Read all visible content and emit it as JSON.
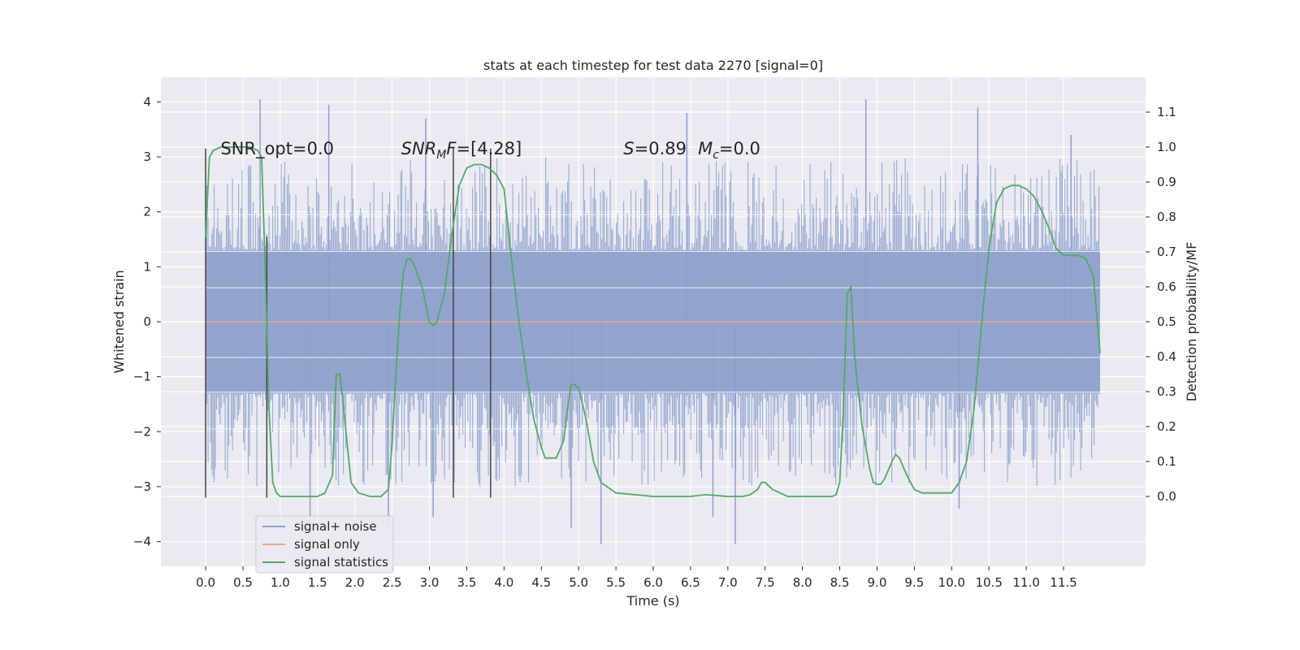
{
  "chart_data": {
    "type": "line",
    "title": "stats at each timestep for test data 2270 [signal=0]",
    "xlabel": "Time (s)",
    "ylabel": "Whitened strain",
    "ylabel_right": "Detection probability/MF",
    "xlim": [
      -0.6,
      12.6
    ],
    "ylim": [
      -4.45,
      4.45
    ],
    "ylim_right": [
      -0.2,
      1.2
    ],
    "x_ticks": [
      0.0,
      0.5,
      1.0,
      1.5,
      2.0,
      2.5,
      3.0,
      3.5,
      4.0,
      4.5,
      5.0,
      5.5,
      6.0,
      6.5,
      7.0,
      7.5,
      8.0,
      8.5,
      9.0,
      9.5,
      10.0,
      10.5,
      11.0,
      11.5
    ],
    "x_tick_labels": [
      "0.0",
      "0.5",
      "1.0",
      "1.5",
      "2.0",
      "2.5",
      "3.0",
      "3.5",
      "4.0",
      "4.5",
      "5.0",
      "5.5",
      "6.0",
      "6.5",
      "7.0",
      "7.5",
      "8.0",
      "8.5",
      "9.0",
      "9.5",
      "10.0",
      "10.5",
      "11.0",
      "11.5"
    ],
    "y_ticks": [
      -4,
      -3,
      -2,
      -1,
      0,
      1,
      2,
      3,
      4
    ],
    "y_tick_labels": [
      "−4",
      "−3",
      "−2",
      "−1",
      "0",
      "1",
      "2",
      "3",
      "4"
    ],
    "y_ticks_right": [
      0.0,
      0.1,
      0.2,
      0.3,
      0.4,
      0.5,
      0.6,
      0.7,
      0.8,
      0.9,
      1.0,
      1.1
    ],
    "y_tick_labels_right": [
      "0.0",
      "0.1",
      "0.2",
      "0.3",
      "0.4",
      "0.5",
      "0.6",
      "0.7",
      "0.8",
      "0.9",
      "1.0",
      "1.1"
    ],
    "grid": true,
    "legend_position": "lower-left",
    "colors": {
      "background": "#eaeaf2",
      "grid": "#ffffff",
      "noise": "#8da0cb",
      "signal": "#e8a98c",
      "stats": "#55a868",
      "vlines": "#444444"
    },
    "noise_band": {
      "x_range": [
        0.0,
        11.99
      ],
      "typical_abs_max": 1.3,
      "peak_abs_max": 4.05
    },
    "series": [
      {
        "name": "signal+ noise",
        "axis": "left",
        "description_value": "whitened noise, spikes",
        "spikes": [
          [
            0.73,
            4.05
          ],
          [
            1.65,
            3.95
          ],
          [
            2.95,
            3.7
          ],
          [
            6.45,
            3.8
          ],
          [
            8.85,
            4.05
          ],
          [
            10.35,
            3.9
          ],
          [
            11.6,
            3.4
          ],
          [
            1.4,
            -3.65
          ],
          [
            2.45,
            -3.75
          ],
          [
            4.9,
            -3.75
          ],
          [
            5.3,
            -4.05
          ],
          [
            6.8,
            -3.55
          ],
          [
            7.1,
            -4.05
          ],
          [
            10.1,
            -3.4
          ],
          [
            3.05,
            -3.55
          ]
        ]
      },
      {
        "name": "signal only",
        "axis": "left",
        "x": [
          0.0,
          11.99
        ],
        "y": [
          0.0,
          0.0
        ]
      },
      {
        "name": "signal statistics",
        "axis": "right",
        "x": [
          0.0,
          0.05,
          0.1,
          0.2,
          0.3,
          0.5,
          0.6,
          0.7,
          0.75,
          0.8,
          0.85,
          0.9,
          0.95,
          1.0,
          1.05,
          1.1,
          1.3,
          1.5,
          1.6,
          1.7,
          1.75,
          1.8,
          1.85,
          1.95,
          2.05,
          2.2,
          2.35,
          2.45,
          2.5,
          2.55,
          2.6,
          2.65,
          2.7,
          2.75,
          2.8,
          2.9,
          2.95,
          3.0,
          3.05,
          3.1,
          3.15,
          3.2,
          3.3,
          3.4,
          3.5,
          3.6,
          3.7,
          3.8,
          3.9,
          4.0,
          4.1,
          4.2,
          4.3,
          4.4,
          4.5,
          4.55,
          4.6,
          4.7,
          4.8,
          4.85,
          4.9,
          4.95,
          5.0,
          5.1,
          5.2,
          5.3,
          5.5,
          6.0,
          6.3,
          6.5,
          6.7,
          7.0,
          7.2,
          7.3,
          7.4,
          7.45,
          7.5,
          7.6,
          7.8,
          8.0,
          8.2,
          8.3,
          8.4,
          8.45,
          8.5,
          8.55,
          8.6,
          8.65,
          8.7,
          8.8,
          8.9,
          8.95,
          9.0,
          9.05,
          9.1,
          9.2,
          9.25,
          9.3,
          9.4,
          9.5,
          9.6,
          9.7,
          9.8,
          9.9,
          10.0,
          10.1,
          10.2,
          10.3,
          10.4,
          10.5,
          10.6,
          10.7,
          10.8,
          10.9,
          11.0,
          11.1,
          11.2,
          11.3,
          11.4,
          11.5,
          11.6,
          11.7,
          11.8,
          11.9,
          11.99
        ],
        "y": [
          0.74,
          0.97,
          0.99,
          1.0,
          1.0,
          1.0,
          1.0,
          0.99,
          0.97,
          0.65,
          0.25,
          0.04,
          0.01,
          0.0,
          0.0,
          0.0,
          0.0,
          0.0,
          0.01,
          0.06,
          0.35,
          0.35,
          0.25,
          0.04,
          0.01,
          0.0,
          0.0,
          0.02,
          0.15,
          0.35,
          0.52,
          0.64,
          0.68,
          0.68,
          0.66,
          0.6,
          0.55,
          0.5,
          0.49,
          0.5,
          0.54,
          0.58,
          0.75,
          0.89,
          0.94,
          0.95,
          0.95,
          0.94,
          0.92,
          0.88,
          0.68,
          0.5,
          0.35,
          0.22,
          0.14,
          0.11,
          0.11,
          0.11,
          0.16,
          0.25,
          0.32,
          0.32,
          0.31,
          0.22,
          0.1,
          0.04,
          0.01,
          0.0,
          0.0,
          0.0,
          0.005,
          0.0,
          0.0,
          0.005,
          0.02,
          0.04,
          0.04,
          0.02,
          0.0,
          0.0,
          0.0,
          0.0,
          0.0,
          0.005,
          0.04,
          0.25,
          0.58,
          0.6,
          0.4,
          0.2,
          0.08,
          0.04,
          0.035,
          0.035,
          0.05,
          0.1,
          0.12,
          0.11,
          0.06,
          0.02,
          0.01,
          0.01,
          0.01,
          0.01,
          0.01,
          0.04,
          0.1,
          0.25,
          0.49,
          0.71,
          0.84,
          0.88,
          0.89,
          0.89,
          0.88,
          0.86,
          0.82,
          0.77,
          0.71,
          0.69,
          0.69,
          0.69,
          0.68,
          0.63,
          0.41
        ]
      }
    ],
    "vertical_lines": [
      {
        "x": 0.0,
        "y0": -3.2,
        "y1": 3.15
      },
      {
        "x": 0.82,
        "y0": -3.2,
        "y1": 1.55
      },
      {
        "x": 3.32,
        "y0": -3.2,
        "y1": 3.15
      },
      {
        "x": 3.82,
        "y0": -3.2,
        "y1": 3.15
      }
    ],
    "annotations": [
      {
        "id": "snr-opt",
        "x": 0.2,
        "y": 3.15,
        "text": "SNR_opt=0.0",
        "italic_parts": false
      },
      {
        "id": "snr-mf",
        "x": 2.62,
        "y": 3.15,
        "base": "SNR",
        "sub": "M",
        "rest": "F=[4.28]"
      },
      {
        "id": "s-value",
        "x": 5.6,
        "y": 3.15,
        "base": "S",
        "rest": "=0.89"
      },
      {
        "id": "mc-value",
        "x": 6.6,
        "y": 3.15,
        "base": "M",
        "sub": "c",
        "rest": "=0.0"
      }
    ],
    "legend": [
      {
        "label": "signal+ noise",
        "color": "#8da0cb"
      },
      {
        "label": "signal only",
        "color": "#e8a98c"
      },
      {
        "label": "signal statistics",
        "color": "#55a868"
      }
    ]
  }
}
